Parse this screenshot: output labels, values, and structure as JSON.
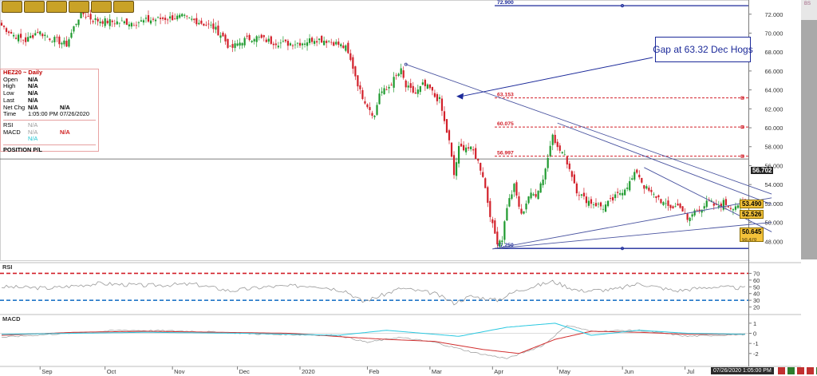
{
  "toolbar": {
    "buttons": [
      "",
      "",
      "",
      "",
      "",
      ""
    ]
  },
  "info_box": {
    "title": "HEZ20 ~ Daily",
    "rows": [
      {
        "k": "Open",
        "v": "N/A"
      },
      {
        "k": "High",
        "v": "N/A"
      },
      {
        "k": "Low",
        "v": "N/A"
      },
      {
        "k": "Last",
        "v": "N/A"
      },
      {
        "k": "Net Chg",
        "v": "N/A",
        "v2": "N/A"
      },
      {
        "k": "Time",
        "v": "1:05:00 PM",
        "v2": "07/26/2020"
      }
    ],
    "rsi": {
      "k": "RSI",
      "v": "N/A"
    },
    "macd": {
      "k": "MACD",
      "v": "N/A",
      "v2": "N/A",
      "v3": "N/A"
    },
    "position": "POSITION P/L"
  },
  "annotation": "Gap at 63.32 Dec Hogs",
  "top_right_label": "BS",
  "time_label": "07/26/2020 1:05:00 PM",
  "price_tags": {
    "last": "56.702",
    "upper": "53.490",
    "mid": "52.526",
    "lower": "50.645",
    "lower_hidden": "50.470"
  },
  "colors": {
    "up": "#1f9a2f",
    "down": "#d2202a",
    "level_red": "#d2202a",
    "level_blue": "#1c2a9a",
    "trend": "#4a54a0",
    "rsi": "#9a9a9a",
    "macd": "#d23030",
    "signal": "#2ac8e0"
  },
  "chart_data": [
    {
      "type": "candlestick",
      "title": "HEZ20 ~ Daily",
      "ylim": [
        46.0,
        73.5
      ],
      "y_ticks": [
        48.0,
        50.0,
        52.0,
        54.0,
        56.0,
        58.0,
        60.0,
        62.0,
        64.0,
        66.0,
        68.0,
        70.0,
        72.0
      ],
      "y_tick_labels": [
        "48.000",
        "50.000",
        "52.000",
        "54.000",
        "56.000",
        "58.000",
        "60.000",
        "62.000",
        "64.000",
        "66.000",
        "68.000",
        "70.000",
        "72.000"
      ],
      "x_labels": [
        "Sep",
        "Oct",
        "Nov",
        "Dec",
        "2020",
        "Feb",
        "Mar",
        "Apr",
        "May",
        "Jun",
        "Jul"
      ],
      "close_keypoints": [
        [
          0,
          70.8
        ],
        [
          5,
          69.8
        ],
        [
          10,
          69.2
        ],
        [
          15,
          70.2
        ],
        [
          20,
          69.5
        ],
        [
          27,
          68.8
        ],
        [
          30,
          70.6
        ],
        [
          33,
          72.2
        ],
        [
          38,
          71.4
        ],
        [
          45,
          71.2
        ],
        [
          55,
          71.1
        ],
        [
          65,
          71.5
        ],
        [
          75,
          71.7
        ],
        [
          82,
          71.2
        ],
        [
          88,
          70.6
        ],
        [
          92,
          69.6
        ],
        [
          95,
          68.3
        ],
        [
          100,
          69.2
        ],
        [
          105,
          69.6
        ],
        [
          112,
          69.1
        ],
        [
          118,
          68.9
        ],
        [
          125,
          69.0
        ],
        [
          130,
          69.4
        ],
        [
          136,
          69.2
        ],
        [
          140,
          68.8
        ],
        [
          143,
          68.4
        ],
        [
          146,
          66.4
        ],
        [
          149,
          63.8
        ],
        [
          152,
          62.4
        ],
        [
          155,
          61.2
        ],
        [
          157,
          63.7
        ],
        [
          160,
          64.0
        ],
        [
          163,
          65.1
        ],
        [
          166,
          66.0
        ],
        [
          168,
          64.3
        ],
        [
          172,
          63.6
        ],
        [
          175,
          64.5
        ],
        [
          178,
          64.1
        ],
        [
          180,
          63.3
        ],
        [
          182,
          62.9
        ],
        [
          184,
          60.6
        ],
        [
          186,
          58.5
        ],
        [
          188,
          55.0
        ],
        [
          190,
          57.8
        ],
        [
          193,
          58.0
        ],
        [
          196,
          57.5
        ],
        [
          198,
          56.4
        ],
        [
          200,
          55.0
        ],
        [
          202,
          52.2
        ],
        [
          204,
          49.6
        ],
        [
          206,
          48.0
        ],
        [
          208,
          48.3
        ],
        [
          210,
          51.7
        ],
        [
          213,
          53.8
        ],
        [
          216,
          50.7
        ],
        [
          219,
          52.8
        ],
        [
          222,
          53.0
        ],
        [
          225,
          54.7
        ],
        [
          227,
          56.8
        ],
        [
          229,
          59.6
        ],
        [
          231,
          57.8
        ],
        [
          233,
          57.4
        ],
        [
          235,
          56.4
        ],
        [
          237,
          55.0
        ],
        [
          239,
          53.4
        ],
        [
          242,
          52.5
        ],
        [
          246,
          52.0
        ],
        [
          250,
          51.6
        ],
        [
          254,
          52.4
        ],
        [
          258,
          53.4
        ],
        [
          261,
          54.2
        ],
        [
          264,
          55.4
        ],
        [
          267,
          53.8
        ],
        [
          270,
          53.0
        ],
        [
          273,
          52.6
        ],
        [
          276,
          51.7
        ],
        [
          279,
          51.6
        ],
        [
          282,
          51.8
        ],
        [
          285,
          50.1
        ],
        [
          288,
          51.2
        ],
        [
          291,
          51.6
        ],
        [
          294,
          52.2
        ],
        [
          297,
          51.6
        ],
        [
          300,
          52.1
        ],
        [
          303,
          51.6
        ],
        [
          306,
          51.9
        ],
        [
          309,
          52.1
        ]
      ],
      "levels": [
        {
          "value": 72.9,
          "label": "72.900",
          "color": "blue"
        },
        {
          "value": 63.153,
          "label": "63.153",
          "color": "red"
        },
        {
          "value": 60.075,
          "label": "60.075",
          "color": "red"
        },
        {
          "value": 56.997,
          "label": "56.997",
          "color": "red"
        },
        {
          "value": 47.25,
          "label": "47.250",
          "color": "blue"
        }
      ],
      "horizontal_line": 56.702,
      "trendlines": [
        {
          "from": [
            168,
            66.7
          ],
          "to": [
            320,
            53.0
          ]
        },
        {
          "from": [
            204,
            47.2
          ],
          "to": [
            320,
            52.6
          ]
        },
        {
          "from": [
            204,
            47.2
          ],
          "to": [
            320,
            50.0
          ]
        },
        {
          "from": [
            231,
            60.5
          ],
          "to": [
            320,
            51.9
          ]
        },
        {
          "from": [
            267,
            55.8
          ],
          "to": [
            320,
            49.0
          ]
        }
      ],
      "gap_annotation_target": [
        189,
        63.32
      ]
    },
    {
      "type": "line",
      "title": "RSI",
      "ylim": [
        10,
        80
      ],
      "y_ticks": [
        20,
        30,
        40,
        50,
        60,
        70
      ],
      "levels": [
        {
          "value": 70,
          "color": "red"
        },
        {
          "value": 30,
          "color": "blue"
        }
      ],
      "series": [
        {
          "keypoints": [
            [
              0,
              50
            ],
            [
              20,
              48
            ],
            [
              40,
              55
            ],
            [
              60,
              52
            ],
            [
              80,
              54
            ],
            [
              95,
              44
            ],
            [
              110,
              50
            ],
            [
              130,
              52
            ],
            [
              143,
              44
            ],
            [
              150,
              28
            ],
            [
              157,
              36
            ],
            [
              166,
              48
            ],
            [
              180,
              40
            ],
            [
              188,
              26
            ],
            [
              195,
              36
            ],
            [
              206,
              30
            ],
            [
              214,
              44
            ],
            [
              229,
              58
            ],
            [
              240,
              44
            ],
            [
              255,
              46
            ],
            [
              265,
              55
            ],
            [
              280,
              44
            ],
            [
              295,
              50
            ],
            [
              309,
              48
            ]
          ]
        }
      ]
    },
    {
      "type": "line",
      "title": "MACD",
      "ylim": [
        -3.2,
        1.7
      ],
      "y_ticks": [
        -2,
        -1,
        0,
        1
      ],
      "series": [
        {
          "keypoints": [
            [
              0,
              -0.4
            ],
            [
              20,
              -0.1
            ],
            [
              50,
              0.3
            ],
            [
              80,
              0.2
            ],
            [
              110,
              -0.1
            ],
            [
              140,
              -0.2
            ],
            [
              152,
              -0.9
            ],
            [
              165,
              -0.4
            ],
            [
              180,
              -0.9
            ],
            [
              196,
              -1.9
            ],
            [
              210,
              -2.5
            ],
            [
              225,
              -1.2
            ],
            [
              235,
              0.8
            ],
            [
              245,
              0.2
            ],
            [
              265,
              0.3
            ],
            [
              285,
              -0.3
            ],
            [
              309,
              -0.1
            ]
          ]
        },
        {
          "keypoints": [
            [
              0,
              -0.2
            ],
            [
              30,
              0.1
            ],
            [
              60,
              0.2
            ],
            [
              90,
              0.1
            ],
            [
              120,
              0.0
            ],
            [
              145,
              -0.4
            ],
            [
              160,
              -0.6
            ],
            [
              180,
              -0.8
            ],
            [
              200,
              -1.6
            ],
            [
              215,
              -2.0
            ],
            [
              230,
              -0.6
            ],
            [
              245,
              0.2
            ],
            [
              265,
              0.1
            ],
            [
              285,
              -0.1
            ],
            [
              309,
              -0.1
            ]
          ]
        },
        {
          "keypoints": [
            [
              0,
              -0.1
            ],
            [
              30,
              0.0
            ],
            [
              60,
              0.1
            ],
            [
              100,
              0.0
            ],
            [
              140,
              -0.2
            ],
            [
              160,
              0.3
            ],
            [
              190,
              -0.3
            ],
            [
              210,
              0.6
            ],
            [
              230,
              1.0
            ],
            [
              245,
              -0.2
            ],
            [
              265,
              0.3
            ],
            [
              285,
              0.0
            ],
            [
              309,
              -0.1
            ]
          ]
        }
      ]
    }
  ]
}
